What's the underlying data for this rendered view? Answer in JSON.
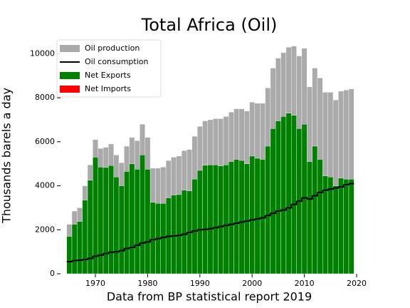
{
  "chart_data": {
    "type": "bar",
    "title": "Total Africa (Oil)",
    "xlabel": "Data from BP statistical report 2019",
    "ylabel": "Thousands barels a day",
    "x": [
      1965,
      1966,
      1967,
      1968,
      1969,
      1970,
      1971,
      1972,
      1973,
      1974,
      1975,
      1976,
      1977,
      1978,
      1979,
      1980,
      1981,
      1982,
      1983,
      1984,
      1985,
      1986,
      1987,
      1988,
      1989,
      1990,
      1991,
      1992,
      1993,
      1994,
      1995,
      1996,
      1997,
      1998,
      1999,
      2000,
      2001,
      2002,
      2003,
      2004,
      2005,
      2006,
      2007,
      2008,
      2009,
      2010,
      2011,
      2012,
      2013,
      2014,
      2015,
      2016,
      2017,
      2018,
      2019
    ],
    "series": [
      {
        "name": "Oil production",
        "color": "#aaaaaa",
        "values": [
          2250,
          2850,
          3000,
          4000,
          4950,
          6100,
          5700,
          5750,
          5900,
          5400,
          5050,
          5800,
          6200,
          6050,
          6800,
          6200,
          4800,
          4800,
          4850,
          5150,
          5300,
          5350,
          5600,
          5650,
          6250,
          6700,
          6950,
          7000,
          7050,
          7050,
          7150,
          7350,
          7500,
          7500,
          7400,
          7800,
          7750,
          7750,
          8450,
          9350,
          9800,
          10050,
          10300,
          10350,
          9900,
          10250,
          8500,
          9350,
          8900,
          8250,
          8250,
          7900,
          8300,
          8350,
          8400
        ]
      },
      {
        "name": "Oil consumption",
        "color": "#000000",
        "values": [
          550,
          600,
          620,
          650,
          700,
          800,
          850,
          920,
          980,
          1000,
          1050,
          1150,
          1200,
          1300,
          1400,
          1450,
          1550,
          1600,
          1650,
          1700,
          1720,
          1750,
          1800,
          1880,
          1950,
          2000,
          2020,
          2050,
          2100,
          2150,
          2200,
          2250,
          2300,
          2350,
          2400,
          2450,
          2500,
          2550,
          2650,
          2750,
          2850,
          2900,
          3000,
          3150,
          3300,
          3450,
          3400,
          3550,
          3700,
          3800,
          3850,
          3900,
          3950,
          4050,
          4100
        ]
      },
      {
        "name": "Net Exports",
        "color": "#008000",
        "values": [
          1700,
          2250,
          2380,
          3350,
          4250,
          5300,
          4850,
          4830,
          4920,
          4400,
          4000,
          4650,
          5000,
          4750,
          5400,
          4750,
          3250,
          3200,
          3200,
          3450,
          3580,
          3600,
          3800,
          3770,
          4300,
          4700,
          4930,
          4950,
          4950,
          4900,
          4950,
          5100,
          5200,
          5150,
          5000,
          5350,
          5250,
          5200,
          5800,
          6600,
          6950,
          7150,
          7300,
          7200,
          6600,
          6800,
          5100,
          5800,
          5200,
          4450,
          4400,
          4000,
          4350,
          4300,
          4300
        ]
      },
      {
        "name": "Net Imports",
        "color": "#ff0000",
        "values": [
          0,
          0,
          0,
          0,
          0,
          0,
          0,
          0,
          0,
          0,
          0,
          0,
          0,
          0,
          0,
          0,
          0,
          0,
          0,
          0,
          0,
          0,
          0,
          0,
          0,
          0,
          0,
          0,
          0,
          0,
          0,
          0,
          0,
          0,
          0,
          0,
          0,
          0,
          0,
          0,
          0,
          0,
          0,
          0,
          0,
          0,
          0,
          0,
          0,
          0,
          0,
          0,
          0,
          0,
          0
        ]
      }
    ],
    "xlim": [
      1964,
      2020
    ],
    "xticks": [
      1970,
      1980,
      1990,
      2000,
      2010,
      2020
    ],
    "ylim": [
      0,
      10500
    ],
    "yticks": [
      0,
      2000,
      4000,
      6000,
      8000,
      10000
    ],
    "legend": "upper left"
  }
}
